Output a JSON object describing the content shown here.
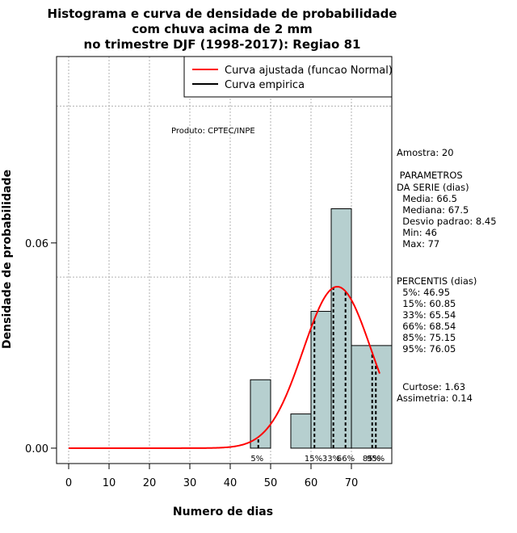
{
  "chart_data": {
    "type": "histogram",
    "title_lines": [
      "Histograma e curva de densidade de probabilidade",
      "com chuva acima de 2 mm",
      "no trimestre DJF (1998-2017): Regiao 81"
    ],
    "xlabel": "Numero de dias",
    "ylabel": "Densidade de probabilidade",
    "xlim": [
      -3,
      80
    ],
    "ylim": [
      -0.0045,
      0.1145
    ],
    "x_ticks": [
      0,
      10,
      20,
      30,
      40,
      50,
      60,
      70
    ],
    "x_tick_labels": [
      "0",
      "10",
      "20",
      "30",
      "40",
      "50",
      "60",
      "70"
    ],
    "y_ticks": [
      0.0,
      0.06
    ],
    "y_tick_labels": [
      "0.00",
      "0.06"
    ],
    "grid_x": [
      0,
      10,
      20,
      30,
      40,
      50,
      60,
      70,
      80
    ],
    "grid_y": [
      0.05,
      0.1
    ],
    "bins": [
      {
        "start": 45,
        "end": 50,
        "density": 0.02
      },
      {
        "start": 50,
        "end": 55,
        "density": 0.0
      },
      {
        "start": 55,
        "end": 60,
        "density": 0.01
      },
      {
        "start": 60,
        "end": 65,
        "density": 0.04
      },
      {
        "start": 65,
        "end": 70,
        "density": 0.07
      },
      {
        "start": 70,
        "end": 80,
        "density": 0.03
      }
    ],
    "normal_fit": {
      "mean": 66.5,
      "sd": 8.45,
      "x_range": [
        0,
        77
      ]
    },
    "percentile_lines": [
      46.95,
      60.85,
      65.54,
      68.54,
      75.15,
      76.05
    ],
    "percentile_labels": [
      {
        "text": "5%",
        "x": 46.65
      },
      {
        "text": "15%",
        "x": 60.6
      },
      {
        "text": "33%",
        "x": 65.0
      },
      {
        "text": "66%",
        "x": 68.6
      },
      {
        "text": "85%",
        "x": 75.0
      },
      {
        "text": "95%",
        "x": 76.0
      }
    ],
    "legend": [
      {
        "label": "Curva ajustada (funcao Normal)",
        "color": "#ff0000"
      },
      {
        "label": "Curva empirica",
        "color": "#000000"
      }
    ],
    "colors": {
      "bar_fill": "#b6cfcf",
      "normal_curve": "#ff0000",
      "grid": "#b0b0b0"
    },
    "source_text": "Produto: CPTEC/INPE",
    "stats_text": [
      "Amostra: 20",
      " PARAMETROS",
      "DA SERIE (dias)",
      "  Media: 66.5",
      "  Mediana: 67.5",
      "  Desvio padrao: 8.45",
      "  Min: 46",
      "  Max: 77",
      "PERCENTIS (dias)",
      "  5%: 46.95",
      "  15%: 60.85",
      "  33%: 65.54",
      "  66%: 68.54",
      "  85%: 75.15",
      "  95%: 76.05",
      "  Curtose: 1.63",
      "Assimetria: 0.14"
    ]
  }
}
